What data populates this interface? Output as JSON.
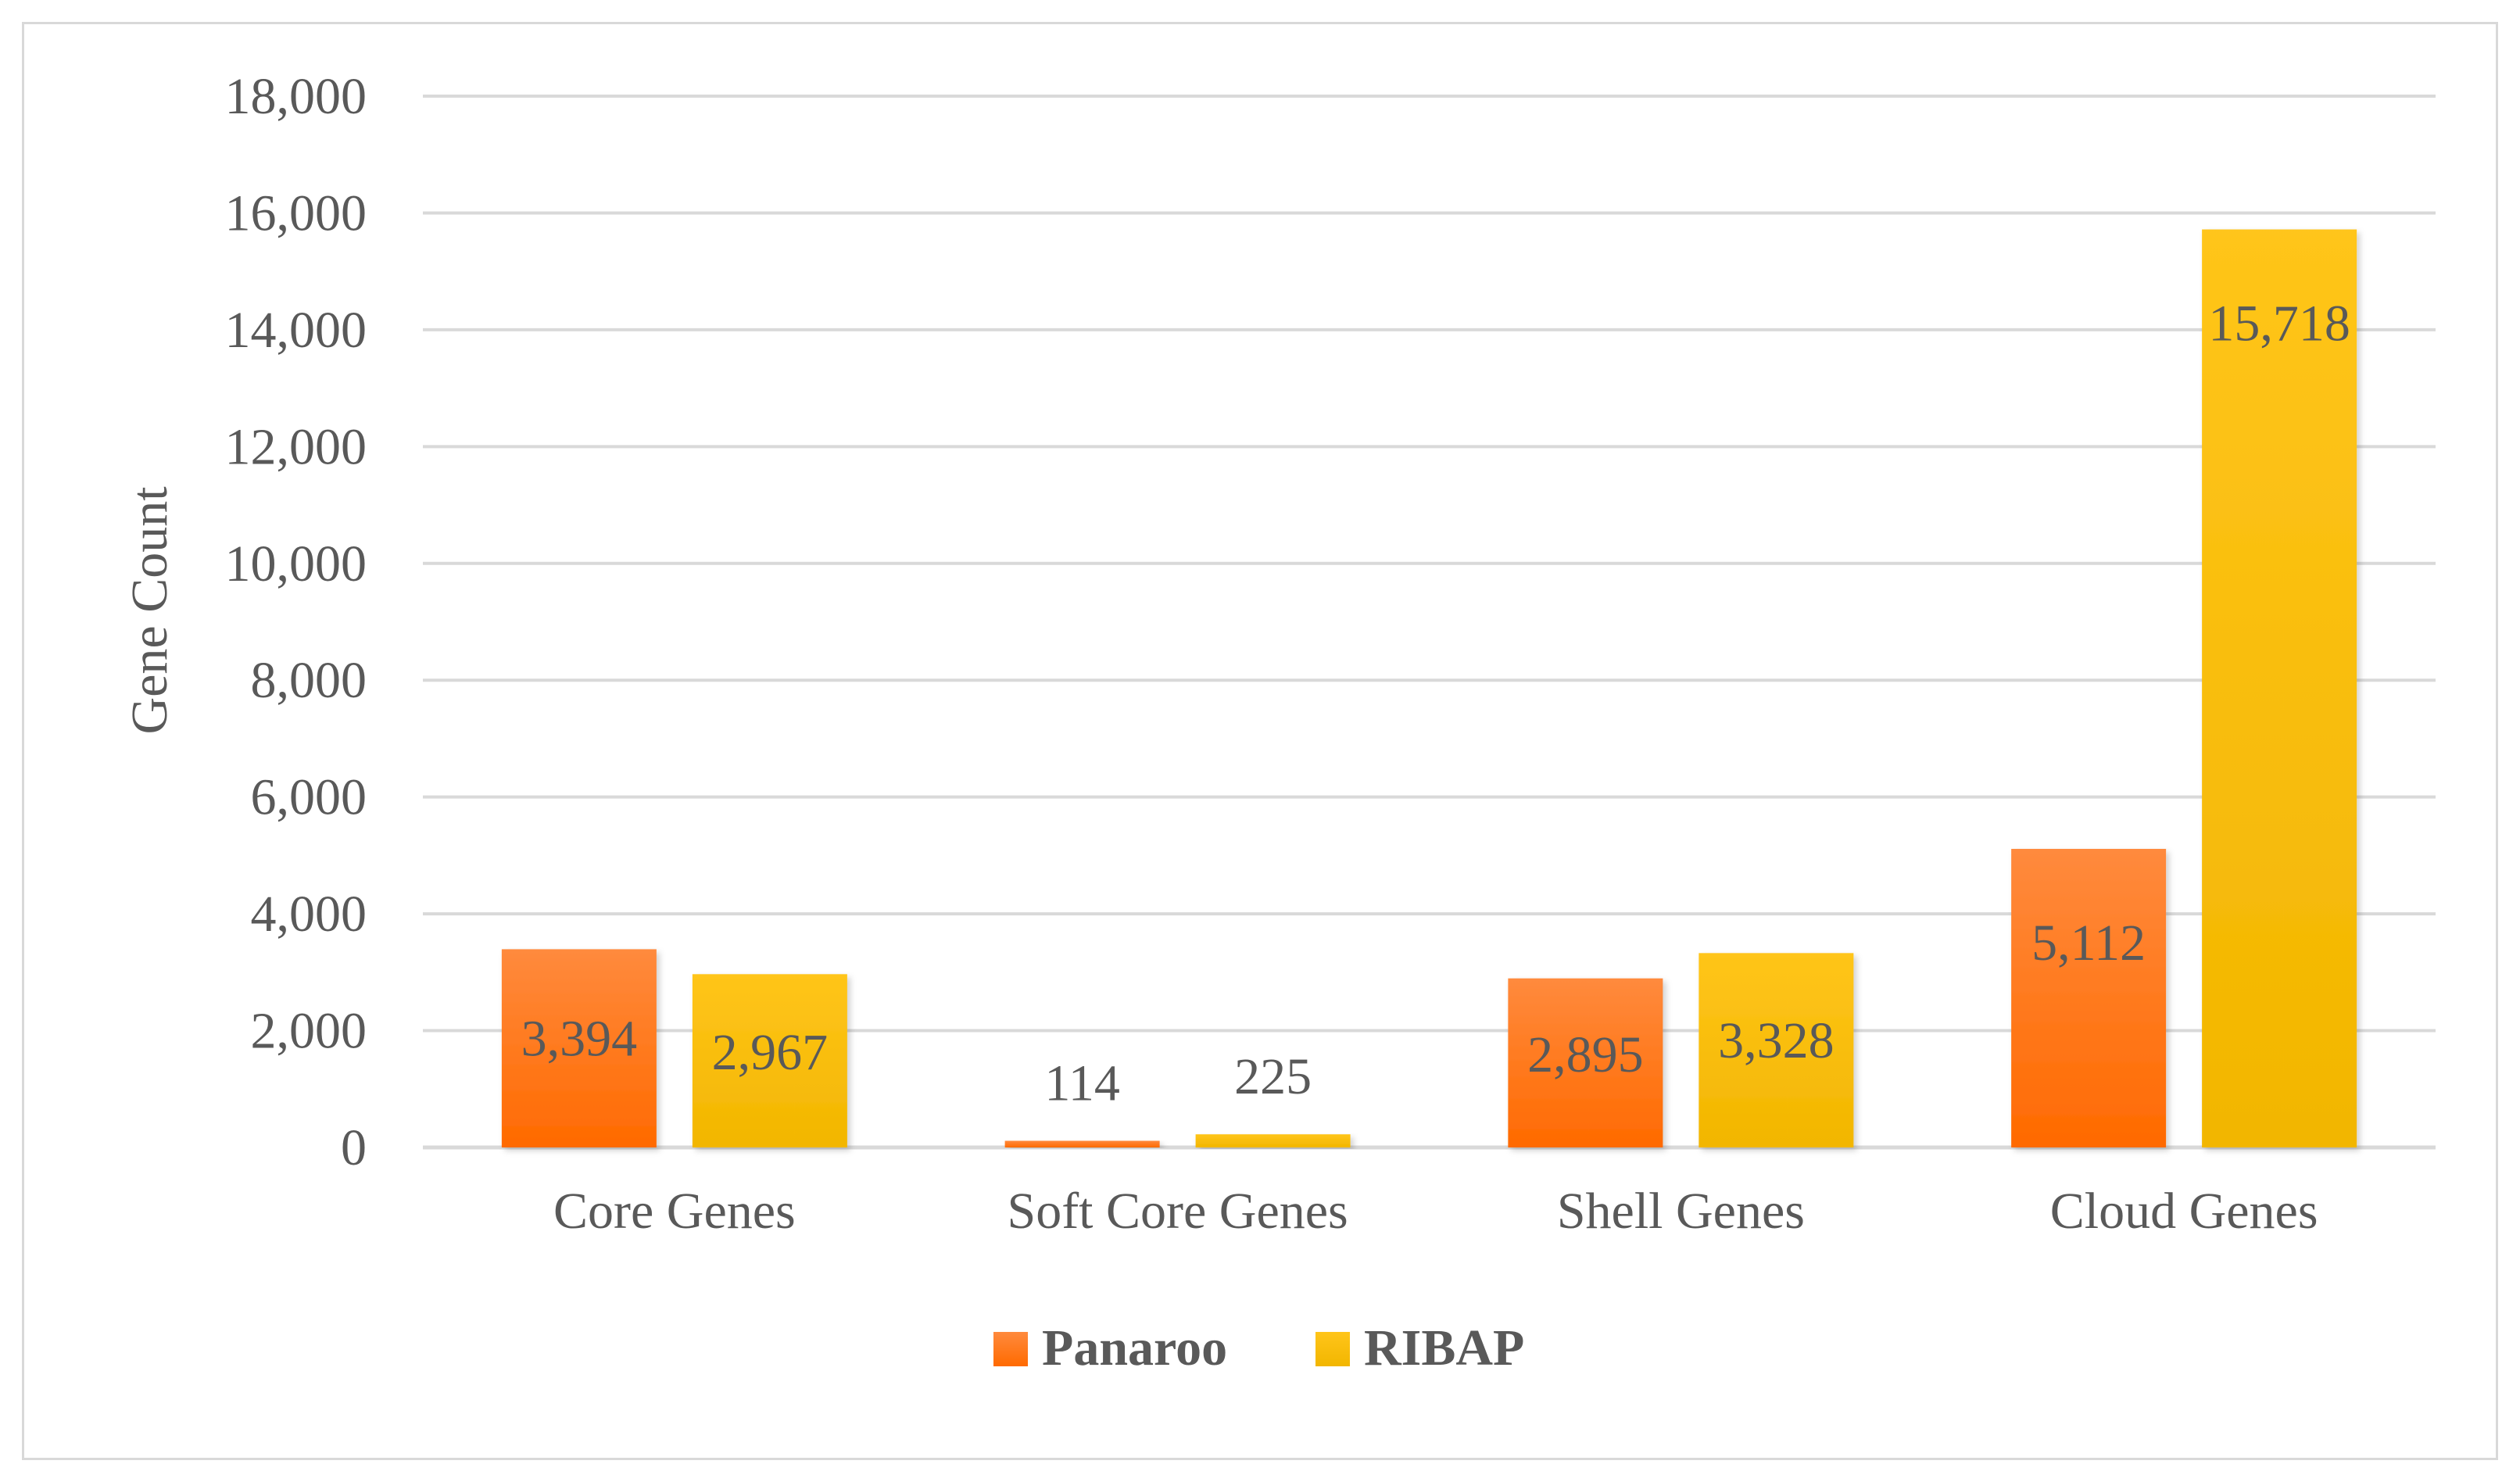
{
  "chart_data": {
    "type": "bar",
    "categories": [
      "Core Genes",
      "Soft Core Genes",
      "Shell Genes",
      "Cloud Genes"
    ],
    "series": [
      {
        "name": "Panaroo",
        "values": [
          3394,
          114,
          2895,
          5112
        ],
        "labels": [
          "3,394",
          "114",
          "2,895",
          "5,112"
        ],
        "color": "#ff7a22"
      },
      {
        "name": "RIBAP",
        "values": [
          2967,
          225,
          3328,
          15718
        ],
        "labels": [
          "2,967",
          "225",
          "3,328",
          "15,718"
        ],
        "color": "#ffc000"
      }
    ],
    "ylabel": "Gene Count",
    "ylim": [
      0,
      18000
    ],
    "yticks": [
      0,
      2000,
      4000,
      6000,
      8000,
      10000,
      12000,
      14000,
      16000,
      18000
    ],
    "ytick_labels": [
      "0",
      "2,000",
      "4,000",
      "6,000",
      "8,000",
      "10,000",
      "12,000",
      "14,000",
      "16,000",
      "18,000"
    ],
    "grid": true,
    "legend_position": "bottom",
    "colors": {
      "grid": "#d9d9d9",
      "text": "#595959",
      "frame": "#d9d9d9"
    }
  }
}
